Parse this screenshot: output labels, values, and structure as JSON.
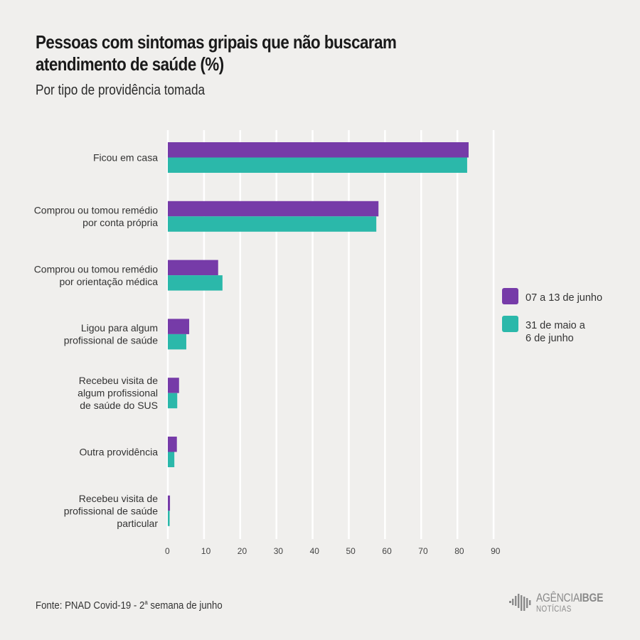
{
  "header": {
    "title": "Pessoas com sintomas gripais que não buscaram atendimento de saúde (%)",
    "subtitle": "Por tipo de providência tomada"
  },
  "footer": {
    "source_prefix": "Fonte: PNAD Covid-19 - 2",
    "source_sup": "a",
    "source_suffix": " semana de junho",
    "logo_top_light": "AGÊNCIA",
    "logo_top_bold": "IBGE",
    "logo_bottom": "NOTÍCIAS"
  },
  "colors": {
    "series_1": "#763ba8",
    "series_2": "#2bb8aa",
    "gridline": "#ffffff",
    "background": "#f0efed"
  },
  "chart_data": {
    "type": "bar",
    "orientation": "horizontal",
    "title": "Pessoas com sintomas gripais que não buscaram atendimento de saúde (%)",
    "subtitle": "Por tipo de providência tomada",
    "xlabel": "",
    "ylabel": "",
    "xlim": [
      0,
      90
    ],
    "xticks": [
      0,
      10,
      20,
      30,
      40,
      50,
      60,
      70,
      80,
      90
    ],
    "grid": true,
    "legend_position": "right",
    "categories": [
      [
        "Ficou em casa"
      ],
      [
        "Comprou ou tomou remédio",
        "por conta própria"
      ],
      [
        "Comprou ou tomou remédio",
        "por orientação médica"
      ],
      [
        "Ligou para algum",
        "profissional de saúde"
      ],
      [
        "Recebeu visita de",
        "algum profissional",
        "de saúde do SUS"
      ],
      [
        "Outra providência"
      ],
      [
        "Recebeu visita de",
        "profissional de saúde",
        "particular"
      ]
    ],
    "series": [
      {
        "name": "07 a 13 de junho",
        "legend_lines": [
          "07 a 13 de junho"
        ],
        "color": "#763ba8",
        "values": [
          83.1,
          58.2,
          13.9,
          5.9,
          3.1,
          2.5,
          0.6
        ]
      },
      {
        "name": "31 de maio a 6 de junho",
        "legend_lines": [
          "31 de maio a",
          "6 de junho"
        ],
        "color": "#2bb8aa",
        "values": [
          82.7,
          57.6,
          15.1,
          5.1,
          2.6,
          1.8,
          0.5
        ]
      }
    ]
  }
}
